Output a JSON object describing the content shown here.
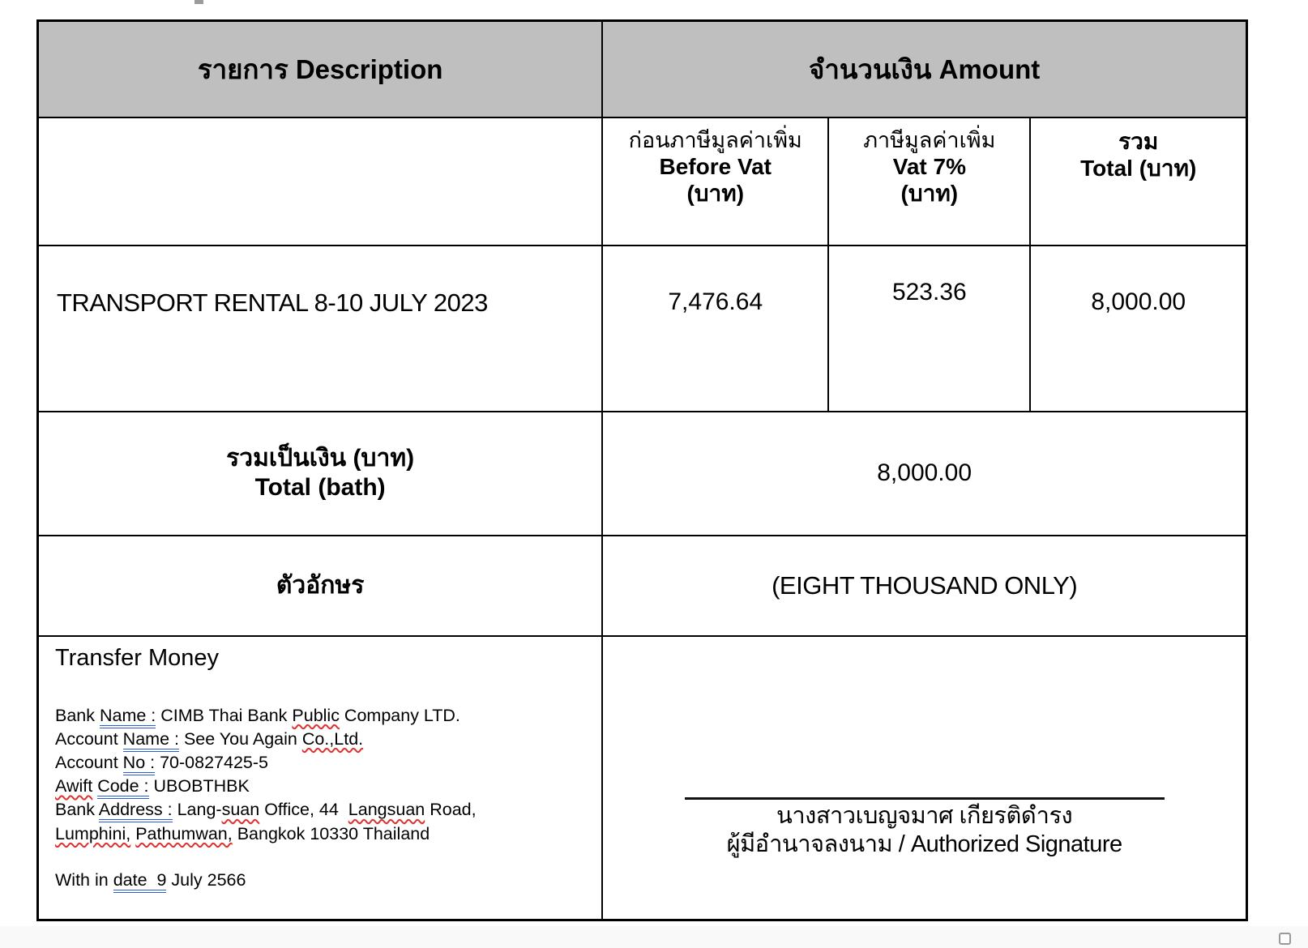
{
  "colors": {
    "header_bg": "#bfbfbf",
    "border": "#000000",
    "grammar_underline_blue": "#2b5bd7",
    "spellcheck_wavy_red": "#e03131"
  },
  "table": {
    "header": {
      "description": "รายการ Description",
      "amount": "จำนวนเงิน Amount"
    },
    "sub_headers": {
      "before_vat": {
        "line1": "ก่อนภาษีมูลค่าเพิ่ม",
        "line2": "Before Vat",
        "line3": "(บาท)"
      },
      "vat": {
        "line1": "ภาษีมูลค่าเพิ่ม",
        "line2": "Vat 7%",
        "line3": "(บาท)"
      },
      "total": {
        "line1": "รวม",
        "line2": "Total (บาท)"
      }
    },
    "items": [
      {
        "description": "TRANSPORT RENTAL 8-10 JULY 2023",
        "before_vat": "7,476.64",
        "vat": "523.36",
        "total": "8,000.00"
      }
    ],
    "total_row": {
      "label_th": "รวมเป็นเงิน (บาท)",
      "label_en": "Total (bath)",
      "amount": "8,000.00"
    },
    "words_row": {
      "label": "ตัวอักษร",
      "value": "(EIGHT THOUSAND ONLY)"
    }
  },
  "transfer": {
    "title": "Transfer Money",
    "lines": [
      [
        {
          "t": "Bank "
        },
        {
          "t": "Name :",
          "s": "blue"
        },
        {
          "t": " CIMB Thai Bank "
        },
        {
          "t": "Public",
          "s": "red"
        },
        {
          "t": " Company LTD."
        }
      ],
      [
        {
          "t": "Account "
        },
        {
          "t": "Name :",
          "s": "blue"
        },
        {
          "t": " See You Again "
        },
        {
          "t": "Co.,Ltd.",
          "s": "red"
        }
      ],
      [
        {
          "t": "Account "
        },
        {
          "t": "No :",
          "s": "blue"
        },
        {
          "t": " 70-0827425-5"
        }
      ],
      [
        {
          "t": "Awift",
          "s": "red"
        },
        {
          "t": " "
        },
        {
          "t": "Code :",
          "s": "blue"
        },
        {
          "t": " UBOBTHBK"
        }
      ],
      [
        {
          "t": "Bank "
        },
        {
          "t": "Address :",
          "s": "blue"
        },
        {
          "t": " Lang-"
        },
        {
          "t": "suan",
          "s": "red"
        },
        {
          "t": " Office, 44  "
        },
        {
          "t": "Langsuan",
          "s": "red"
        },
        {
          "t": " Road,"
        }
      ],
      [
        {
          "t": "Lumphini,",
          "s": "red"
        },
        {
          "t": " "
        },
        {
          "t": "Pathumwan,",
          "s": "red"
        },
        {
          "t": " Bangkok 10330 Thailand"
        }
      ],
      [
        {
          "t": "With in "
        },
        {
          "t": "date  9",
          "s": "blue"
        },
        {
          "t": " July 2566"
        }
      ]
    ]
  },
  "signature": {
    "name": "นางสาวเบญจมาศ เกียรติดำรง",
    "title": "ผู้มีอำนาจลงนาม / Authorized Signature"
  }
}
